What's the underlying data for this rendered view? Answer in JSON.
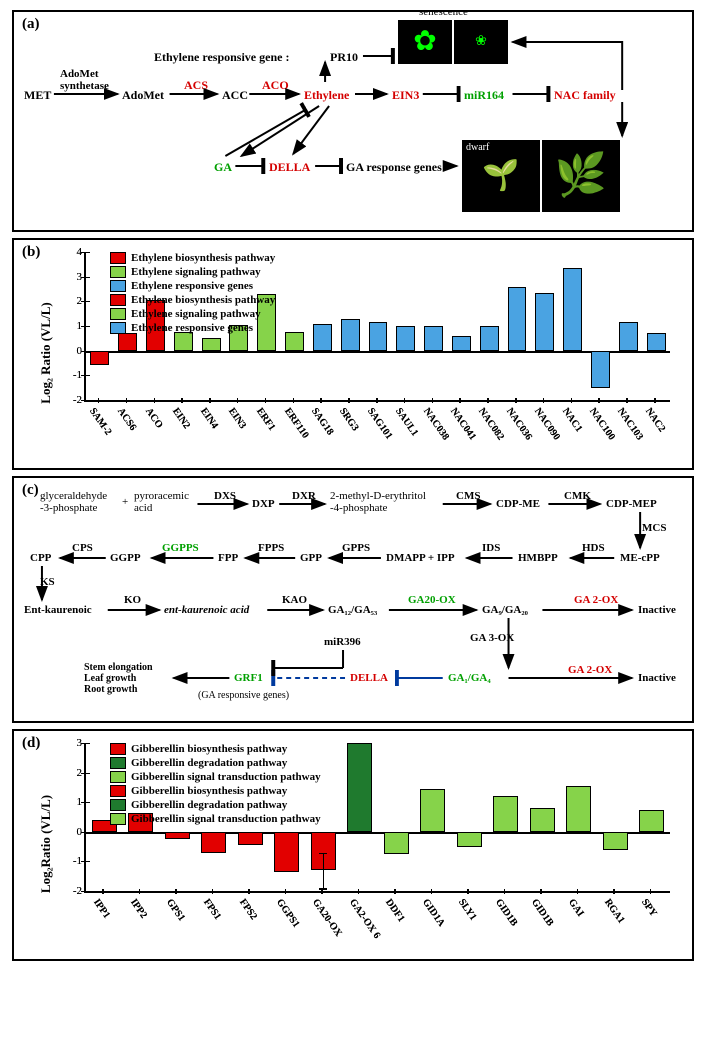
{
  "panels": {
    "a": "(a)",
    "b": "(b)",
    "c": "(c)",
    "d": "(d)"
  },
  "a": {
    "top": "senescence",
    "ergLabel": "Ethylene  responsive gene :",
    "pr10": "PR10",
    "met": "MET",
    "adomet": "AdoMet",
    "ams": "AdoMet\nsynthetase",
    "acs": "ACS",
    "acc": "ACC",
    "aco": "ACO",
    "eth": "Ethylene",
    "ein3": "EIN3",
    "mir164": "miR164",
    "nacf": "NAC family",
    "ga": "GA",
    "della": "DELLA",
    "garg": "GA response genes",
    "dwarf": "dwarf"
  },
  "b": {
    "ylabel": "Log₂ Ratio (VL/L)",
    "ylim": [
      -2,
      4
    ],
    "ticks": [
      -2,
      -1,
      0,
      1,
      2,
      3,
      4
    ],
    "legend": [
      {
        "t": "Ethylene biosynthesis pathway",
        "c": "#e20000"
      },
      {
        "t": "Ethylene signaling pathway",
        "c": "#86d34a"
      },
      {
        "t": "Ethylene responsive genes",
        "c": "#4aa3e2"
      }
    ],
    "cats": [
      {
        "l": "SAM-2",
        "v": -0.6,
        "c": "#e20000"
      },
      {
        "l": "ACS6",
        "v": 0.7,
        "c": "#e20000"
      },
      {
        "l": "ACO",
        "v": 2.05,
        "c": "#e20000"
      },
      {
        "l": "EIN2",
        "v": 0.75,
        "c": "#86d34a"
      },
      {
        "l": "EIN4",
        "v": 0.5,
        "c": "#86d34a"
      },
      {
        "l": "EIN3",
        "v": 1.05,
        "c": "#86d34a"
      },
      {
        "l": "ERF1",
        "v": 2.3,
        "c": "#86d34a"
      },
      {
        "l": "ERF110",
        "v": 0.75,
        "c": "#86d34a"
      },
      {
        "l": "SAG18",
        "v": 1.1,
        "c": "#4aa3e2"
      },
      {
        "l": "SRG3",
        "v": 1.3,
        "c": "#4aa3e2"
      },
      {
        "l": "SAG101",
        "v": 1.15,
        "c": "#4aa3e2"
      },
      {
        "l": "SAUL1",
        "v": 1.0,
        "c": "#4aa3e2"
      },
      {
        "l": "NAC038",
        "v": 1.0,
        "c": "#4aa3e2"
      },
      {
        "l": "NAC041",
        "v": 0.6,
        "c": "#4aa3e2"
      },
      {
        "l": "NAC082",
        "v": 1.0,
        "c": "#4aa3e2"
      },
      {
        "l": "NAC036",
        "v": 2.6,
        "c": "#4aa3e2"
      },
      {
        "l": "NAC090",
        "v": 2.35,
        "c": "#4aa3e2"
      },
      {
        "l": "NAC1",
        "v": 3.35,
        "c": "#4aa3e2"
      },
      {
        "l": "NAC100",
        "v": -1.5,
        "c": "#4aa3e2"
      },
      {
        "l": "NAC103",
        "v": 1.15,
        "c": "#4aa3e2"
      },
      {
        "l": "NAC2",
        "v": 0.7,
        "c": "#4aa3e2"
      }
    ]
  },
  "c": {
    "r1": {
      "gly": "glyceraldehyde\n-3-phosphate",
      "plus": "+",
      "pyro": "pyroracemic\nacid",
      "dxs": "DXS",
      "dxp": "DXP",
      "dxr": "DXR",
      "methery": "2-methyl-D-erythritol\n-4-phosphate",
      "cms": "CMS",
      "cdpme": "CDP-ME",
      "cmk": "CMK",
      "cdpmep": "CDP-MEP"
    },
    "r2": {
      "cpp": "CPP",
      "cps": "CPS",
      "ggpp": "GGPP",
      "ggpps": "GGPPS",
      "fpp": "FPP",
      "fpps": "FPPS",
      "gpp": "GPP",
      "gpps": "GPPS",
      "dmi": "DMAPP + IPP",
      "ids": "IDS",
      "hmbpp": "HMBPP",
      "hds": "HDS",
      "mecpp": "ME-cPP",
      "mcs": "MCS"
    },
    "r3": {
      "ek": "Ent-kaurenoic",
      "ks": "KS",
      "ko": "KO",
      "eka": "ent-kaurenoic acid",
      "kao": "KAO",
      "ga12": "GA₁₂/GA₅₃",
      "ga20ox": "GA20-OX",
      "ga9": "GA₉/GA₂₀",
      "ga2ox": "GA 2-OX",
      "inact": "Inactive",
      "ga3ox": "GA 3-OX"
    },
    "r4": {
      "mir396": "miR396",
      "stem": "Stem elongation\nLeaf growth\nRoot growth",
      "grf1": "GRF1",
      "garg": "(GA responsive genes)",
      "della": "DELLA",
      "ga14": "GA₁/GA₄",
      "ga2ox": "GA 2-OX",
      "inact": "Inactive"
    }
  },
  "d": {
    "ylabel": "Log₂Ratio (VL/L)",
    "ylim": [
      -2,
      3
    ],
    "ticks": [
      -2,
      -1,
      0,
      1,
      2,
      3
    ],
    "legend": [
      {
        "t": "Gibberellin biosynthesis pathway",
        "c": "#e20000"
      },
      {
        "t": "Gibberellin degradation pathway",
        "c": "#1f7a2e"
      },
      {
        "t": "Gibberellin signal transduction pathway",
        "c": "#86d34a"
      }
    ],
    "cats": [
      {
        "l": "IPP1",
        "v": 0.4,
        "c": "#e20000"
      },
      {
        "l": "IPP2",
        "v": 0.65,
        "c": "#e20000"
      },
      {
        "l": "GPS1",
        "v": -0.25,
        "c": "#e20000"
      },
      {
        "l": "FPS1",
        "v": -0.7,
        "c": "#e20000"
      },
      {
        "l": "FPS2",
        "v": -0.45,
        "c": "#e20000"
      },
      {
        "l": "GGPS1",
        "v": -1.35,
        "c": "#e20000"
      },
      {
        "l": "GA20-OX",
        "v": -1.3,
        "c": "#e20000",
        "err": 0.6
      },
      {
        "l": "GA2-OX 6",
        "v": 3.0,
        "c": "#1f7a2e"
      },
      {
        "l": "DDF1",
        "v": -0.75,
        "c": "#86d34a"
      },
      {
        "l": "GID1A",
        "v": 1.45,
        "c": "#86d34a"
      },
      {
        "l": "SLY1",
        "v": -0.5,
        "c": "#86d34a"
      },
      {
        "l": "GID1B",
        "v": 1.2,
        "c": "#86d34a"
      },
      {
        "l": "GID1B",
        "v": 0.8,
        "c": "#86d34a"
      },
      {
        "l": "GAI",
        "v": 1.55,
        "c": "#86d34a"
      },
      {
        "l": "RGA1",
        "v": -0.6,
        "c": "#86d34a"
      },
      {
        "l": "SPY",
        "v": 0.75,
        "c": "#86d34a"
      }
    ]
  }
}
